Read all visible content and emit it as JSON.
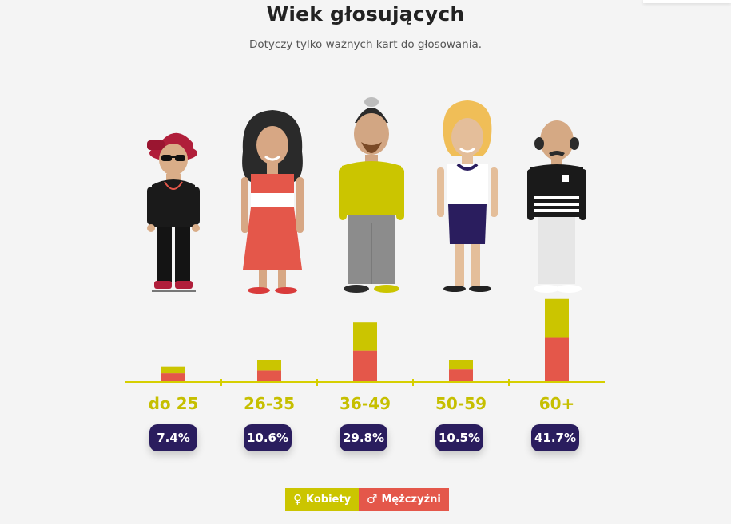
{
  "title": "Wiek głosujących",
  "subtitle": "Dotyczy tylko ważnych kart do głosowania.",
  "colors": {
    "women": "#cbc500",
    "men": "#e4574a",
    "axis": "#d6cf00",
    "badge": "#2a1d5e",
    "label": "#c6bf00"
  },
  "icons": {
    "women": "female-symbol-icon",
    "men": "male-symbol-icon"
  },
  "legend": {
    "women_symbol": "♀",
    "women_label": "Kobiety",
    "men_symbol": "♂",
    "men_label": "Mężczyźni"
  },
  "groups": [
    {
      "age": "do 25",
      "pct": "7.4%"
    },
    {
      "age": "26-35",
      "pct": "10.6%"
    },
    {
      "age": "36-49",
      "pct": "29.8%"
    },
    {
      "age": "50-59",
      "pct": "10.5%"
    },
    {
      "age": "60+",
      "pct": "41.7%"
    }
  ],
  "chart_data": {
    "type": "bar",
    "stacked": true,
    "categories": [
      "do 25",
      "26-35",
      "36-49",
      "50-59",
      "60+"
    ],
    "series": [
      {
        "name": "Mężczyźni",
        "values": [
          4.0,
          5.5,
          15.5,
          6.0,
          22.0
        ]
      },
      {
        "name": "Kobiety",
        "values": [
          3.4,
          5.1,
          14.3,
          4.5,
          19.7
        ]
      }
    ],
    "totals": [
      7.4,
      10.6,
      29.8,
      10.5,
      41.7
    ],
    "ylim": [
      0,
      42
    ]
  }
}
